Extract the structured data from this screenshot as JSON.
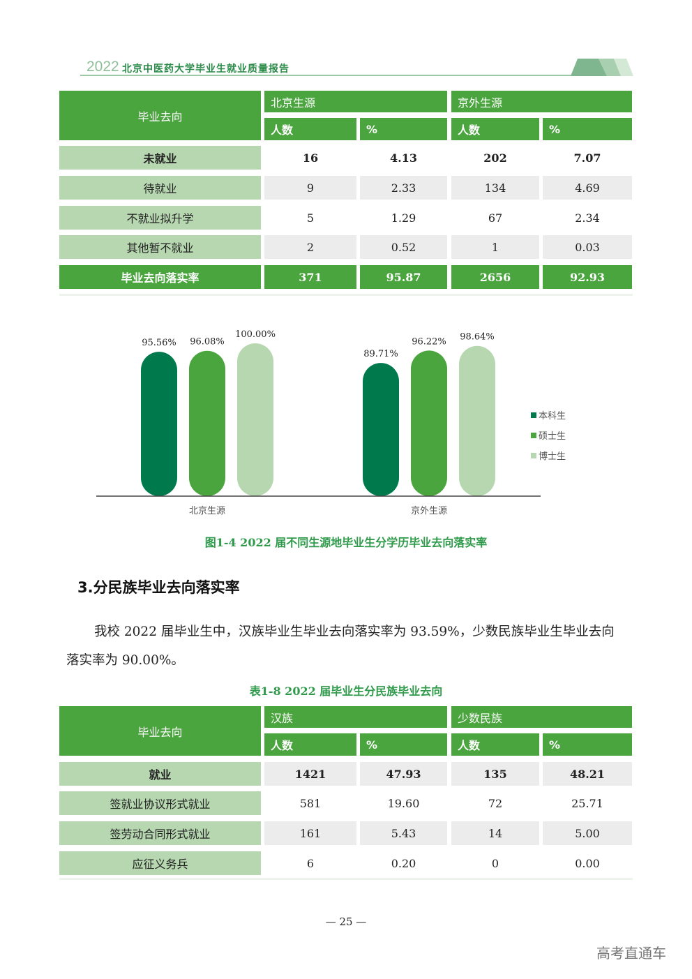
{
  "header": {
    "year": "2022",
    "title": "北京中医药大学毕业生就业质量报告"
  },
  "table1": {
    "corner": "毕业去向",
    "groups": [
      "北京生源",
      "京外生源"
    ],
    "subcols": [
      "人数",
      "%",
      "人数",
      "%"
    ],
    "rows": [
      {
        "label": "未就业",
        "values": [
          "16",
          "4.13",
          "202",
          "7.07"
        ],
        "style": "bold"
      },
      {
        "label": "待就业",
        "values": [
          "9",
          "2.33",
          "134",
          "4.69"
        ],
        "style": "gray"
      },
      {
        "label": "不就业拟升学",
        "values": [
          "5",
          "1.29",
          "67",
          "2.34"
        ],
        "style": "plain"
      },
      {
        "label": "其他暂不就业",
        "values": [
          "2",
          "0.52",
          "1",
          "0.03"
        ],
        "style": "gray"
      },
      {
        "label": "毕业去向落实率",
        "values": [
          "371",
          "95.87",
          "2656",
          "92.93"
        ],
        "style": "total"
      }
    ]
  },
  "chart_data": {
    "type": "bar",
    "categories": [
      "北京生源",
      "京外生源"
    ],
    "series": [
      {
        "name": "本科生",
        "values": [
          95.56,
          89.71
        ],
        "labels": [
          "95.56%",
          "89.71%"
        ],
        "color": "#007a4d"
      },
      {
        "name": "硕士生",
        "values": [
          96.08,
          96.22
        ],
        "labels": [
          "96.08%",
          "96.22%"
        ],
        "color": "#4aa53e"
      },
      {
        "name": "博士生",
        "values": [
          100.0,
          98.64
        ],
        "labels": [
          "100.00%",
          "98.64%"
        ],
        "color": "#b6d7b0"
      }
    ],
    "ylim": [
      20,
      100
    ],
    "grid": false,
    "legend": "right",
    "caption": "图1-4   2022 届不同生源地毕业生分学历毕业去向落实率"
  },
  "section": {
    "heading": "3.分民族毕业去向落实率",
    "paragraph": "我校 2022 届毕业生中，汉族毕业生毕业去向落实率为 93.59%，少数民族毕业生毕业去向落实率为 90.00%。"
  },
  "table2": {
    "caption": "表1-8  2022 届毕业生分民族毕业去向",
    "corner": "毕业去向",
    "groups": [
      "汉族",
      "少数民族"
    ],
    "subcols": [
      "人数",
      "%",
      "人数",
      "%"
    ],
    "rows": [
      {
        "label": "就业",
        "values": [
          "1421",
          "47.93",
          "135",
          "48.21"
        ],
        "style": "graybold"
      },
      {
        "label": "签就业协议形式就业",
        "values": [
          "581",
          "19.60",
          "72",
          "25.71"
        ],
        "style": "plain"
      },
      {
        "label": "签劳动合同形式就业",
        "values": [
          "161",
          "5.43",
          "14",
          "5.00"
        ],
        "style": "gray"
      },
      {
        "label": "应征义务兵",
        "values": [
          "6",
          "0.20",
          "0",
          "0.00"
        ],
        "style": "plain"
      }
    ]
  },
  "footer": {
    "page": "— 25 —",
    "watermark": "高考直通车"
  }
}
